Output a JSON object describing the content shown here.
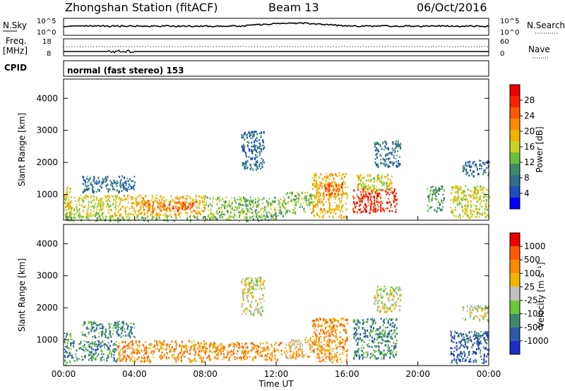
{
  "header": {
    "station": "Zhongshan Station (fitACF)",
    "beam": "Beam 13",
    "date": "06/Oct/2016"
  },
  "noise_panel": {
    "left_label": "N.Sky",
    "right_label": "N.Search",
    "tick_top": "10^5",
    "tick_bottom": "10^0"
  },
  "freq_panel": {
    "left_label_line1": "Freq.",
    "left_label_line2": "[MHz]",
    "right_label": "Nave",
    "left_tick_top": "18",
    "left_tick_bottom": "8",
    "right_tick_top": "60",
    "right_tick_bottom": "0"
  },
  "cpid_panel": {
    "label": "CPID",
    "text": "normal (fast stereo) 153"
  },
  "chart_data": [
    {
      "type": "heatmap",
      "name": "power",
      "ylabel": "Slant Range [km]",
      "xlabel": "Time UT",
      "xlim": [
        0,
        24
      ],
      "ylim": [
        200,
        4600
      ],
      "yticks": [
        "1000",
        "2000",
        "3000",
        "4000"
      ],
      "colorbar_label": "Power [dB]",
      "colorbar_ticks": [
        "4",
        "8",
        "12",
        "16",
        "20",
        "24",
        "28"
      ],
      "colorbar_colors": [
        "#0000ff",
        "#1f4fb8",
        "#2f6e8c",
        "#3d8a6a",
        "#6cbf3a",
        "#c8d22a",
        "#f2b400",
        "#ff8c00",
        "#ff5a00",
        "#ff2000",
        "#ee0000"
      ],
      "echo_regions": [
        {
          "t0": 0.0,
          "t1": 0.4,
          "r0": 250,
          "r1": 1300,
          "level": 6
        },
        {
          "t0": 0.0,
          "t1": 3.0,
          "r0": 300,
          "r1": 1000,
          "level": 5
        },
        {
          "t0": 3.0,
          "t1": 8.0,
          "r0": 350,
          "r1": 1000,
          "level": 6
        },
        {
          "t0": 4.5,
          "t1": 7.5,
          "r0": 500,
          "r1": 800,
          "level": 8
        },
        {
          "t0": 8.0,
          "t1": 12.5,
          "r0": 350,
          "r1": 950,
          "level": 4
        },
        {
          "t0": 12.5,
          "t1": 14.0,
          "r0": 450,
          "r1": 1100,
          "level": 4
        },
        {
          "t0": 14.0,
          "t1": 16.0,
          "r0": 300,
          "r1": 1700,
          "level": 6
        },
        {
          "t0": 14.5,
          "t1": 15.8,
          "r0": 1000,
          "r1": 1400,
          "level": 8
        },
        {
          "t0": 16.3,
          "t1": 18.8,
          "r0": 450,
          "r1": 1200,
          "level": 9
        },
        {
          "t0": 16.5,
          "t1": 18.5,
          "r0": 1100,
          "r1": 1650,
          "level": 5
        },
        {
          "t0": 10.0,
          "t1": 11.3,
          "r0": 1800,
          "r1": 3000,
          "level": 2
        },
        {
          "t0": 1.0,
          "t1": 4.0,
          "r0": 1100,
          "r1": 1600,
          "level": 2
        },
        {
          "t0": 17.5,
          "t1": 19.0,
          "r0": 1900,
          "r1": 2700,
          "level": 2
        },
        {
          "t0": 20.5,
          "t1": 21.5,
          "r0": 500,
          "r1": 1300,
          "level": 3
        },
        {
          "t0": 21.8,
          "t1": 24.0,
          "r0": 300,
          "r1": 1300,
          "level": 5
        },
        {
          "t0": 22.5,
          "t1": 24.0,
          "r0": 1600,
          "r1": 2100,
          "level": 2
        },
        {
          "t0": 0.0,
          "t1": 12.0,
          "r0": 200,
          "r1": 350,
          "level": 4
        }
      ]
    },
    {
      "type": "heatmap",
      "name": "velocity",
      "ylabel": "Slant Range [km]",
      "xlabel": "Time UT",
      "xlim": [
        0,
        24
      ],
      "ylim": [
        200,
        4600
      ],
      "yticks": [
        "1000",
        "2000",
        "3000",
        "4000"
      ],
      "xticks": [
        "00:00",
        "04:00",
        "08:00",
        "12:00",
        "16:00",
        "20:00",
        "00:00"
      ],
      "colorbar_label": "Velocity [m s⁻¹]",
      "colorbar_ticks": [
        "1000",
        "500",
        "100",
        "25",
        "-25",
        "-100",
        "-500",
        "-1000"
      ],
      "colorbar_colors": [
        "#1a2fbf",
        "#2c5aa8",
        "#3a8a6a",
        "#6cc83a",
        "#c0c0c0",
        "#f2b400",
        "#ff8c00",
        "#ff5a00",
        "#ee0000"
      ],
      "echo_regions": [
        {
          "t0": 0.0,
          "t1": 0.5,
          "r0": 250,
          "r1": 1300,
          "level": 2
        },
        {
          "t0": 0.5,
          "t1": 3.0,
          "r0": 350,
          "r1": 1000,
          "level": 2
        },
        {
          "t0": 3.0,
          "t1": 8.0,
          "r0": 350,
          "r1": 1000,
          "level": 6
        },
        {
          "t0": 8.0,
          "t1": 12.5,
          "r0": 400,
          "r1": 950,
          "level": 6
        },
        {
          "t0": 12.5,
          "t1": 14.0,
          "r0": 450,
          "r1": 1100,
          "level": 5
        },
        {
          "t0": 14.0,
          "t1": 16.0,
          "r0": 300,
          "r1": 1700,
          "level": 6
        },
        {
          "t0": 16.3,
          "t1": 18.8,
          "r0": 450,
          "r1": 1700,
          "level": 2
        },
        {
          "t0": 10.0,
          "t1": 11.3,
          "r0": 1800,
          "r1": 3000,
          "level": 4
        },
        {
          "t0": 1.0,
          "t1": 4.0,
          "r0": 1100,
          "r1": 1600,
          "level": 2
        },
        {
          "t0": 17.5,
          "t1": 19.0,
          "r0": 1900,
          "r1": 2700,
          "level": 4
        },
        {
          "t0": 21.8,
          "t1": 24.0,
          "r0": 300,
          "r1": 1300,
          "level": 1
        },
        {
          "t0": 22.5,
          "t1": 24.0,
          "r0": 1600,
          "r1": 2100,
          "level": 4
        }
      ]
    }
  ]
}
